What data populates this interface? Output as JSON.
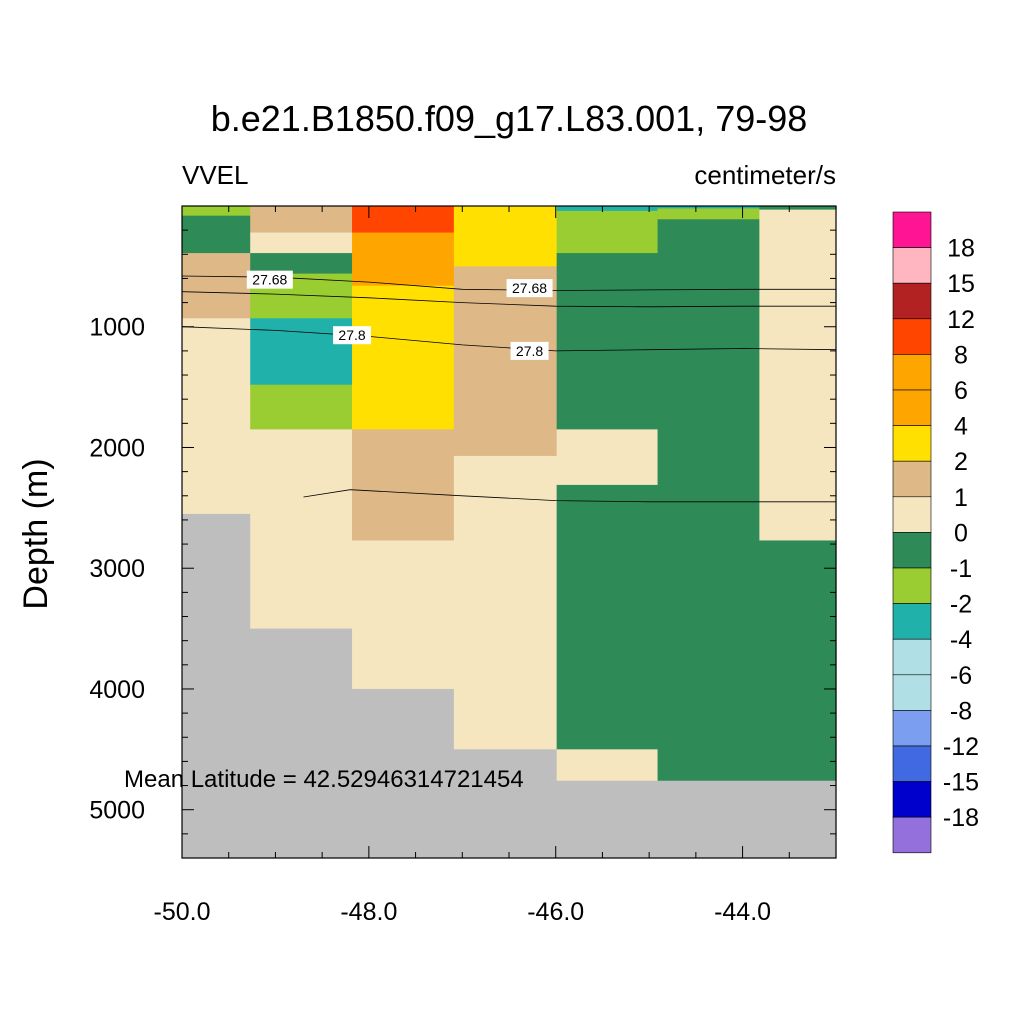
{
  "chart_data": {
    "type": "heatmap",
    "title": "b.e21.B1850.f09_g17.L83.001, 79-98",
    "variable_label": "VVEL",
    "units_label": "centimeter/s",
    "ylabel": "Depth (m)",
    "xlim": [
      -50.0,
      -43.0
    ],
    "ylim": [
      5400,
      0
    ],
    "x_ticks": [
      -50.0,
      -48.0,
      -46.0,
      -44.0
    ],
    "x_tick_labels": [
      "-50.0",
      "-48.0",
      "-46.0",
      "-44.0"
    ],
    "y_ticks": [
      1000,
      2000,
      3000,
      4000,
      5000
    ],
    "y_tick_labels": [
      "1000",
      "2000",
      "3000",
      "4000",
      "5000"
    ],
    "x_edges": [
      -50.0,
      -49.27,
      -48.18,
      -47.09,
      -45.99,
      -44.91,
      -43.82,
      -43.0
    ],
    "land_color": "#bebebe",
    "columns": [
      {
        "segments": [
          {
            "top": 0,
            "bottom": 80,
            "value": -2
          },
          {
            "top": 80,
            "bottom": 390,
            "value": -1
          },
          {
            "top": 390,
            "bottom": 930,
            "value": 1
          },
          {
            "top": 930,
            "bottom": 2550,
            "value": 0
          },
          {
            "top": 2550,
            "bottom": 5400,
            "land": true
          }
        ]
      },
      {
        "segments": [
          {
            "top": 0,
            "bottom": 220,
            "value": 1
          },
          {
            "top": 220,
            "bottom": 390,
            "value": 0
          },
          {
            "top": 390,
            "bottom": 560,
            "value": -1
          },
          {
            "top": 560,
            "bottom": 930,
            "value": -2
          },
          {
            "top": 930,
            "bottom": 1480,
            "value": -4
          },
          {
            "top": 1480,
            "bottom": 1850,
            "value": -2
          },
          {
            "top": 1850,
            "bottom": 3500,
            "value": 0
          },
          {
            "top": 3500,
            "bottom": 5400,
            "land": true
          }
        ]
      },
      {
        "segments": [
          {
            "top": 0,
            "bottom": 220,
            "value": 8
          },
          {
            "top": 220,
            "bottom": 660,
            "value": 6
          },
          {
            "top": 660,
            "bottom": 1850,
            "value": 2
          },
          {
            "top": 1850,
            "bottom": 2770,
            "value": 1
          },
          {
            "top": 2770,
            "bottom": 4000,
            "value": 0
          },
          {
            "top": 4000,
            "bottom": 5400,
            "land": true
          }
        ]
      },
      {
        "segments": [
          {
            "top": 0,
            "bottom": 500,
            "value": 2
          },
          {
            "top": 500,
            "bottom": 2070,
            "value": 1
          },
          {
            "top": 2070,
            "bottom": 4500,
            "value": 0
          },
          {
            "top": 4500,
            "bottom": 5400,
            "land": true
          }
        ]
      },
      {
        "segments": [
          {
            "top": 0,
            "bottom": 40,
            "value": -4
          },
          {
            "top": 40,
            "bottom": 390,
            "value": -2
          },
          {
            "top": 390,
            "bottom": 1850,
            "value": -1
          },
          {
            "top": 1850,
            "bottom": 2310,
            "value": 0
          },
          {
            "top": 2310,
            "bottom": 4500,
            "value": -1
          },
          {
            "top": 4500,
            "bottom": 4760,
            "value": 0
          },
          {
            "top": 4760,
            "bottom": 5400,
            "land": true
          }
        ]
      },
      {
        "segments": [
          {
            "top": 0,
            "bottom": 20,
            "value": -4
          },
          {
            "top": 20,
            "bottom": 110,
            "value": -2
          },
          {
            "top": 110,
            "bottom": 4760,
            "value": -1
          },
          {
            "top": 4760,
            "bottom": 5400,
            "land": true
          }
        ]
      },
      {
        "segments": [
          {
            "top": 0,
            "bottom": 30,
            "value": -1
          },
          {
            "top": 30,
            "bottom": 2770,
            "value": 0
          },
          {
            "top": 2770,
            "bottom": 4760,
            "value": -1
          },
          {
            "top": 4760,
            "bottom": 5400,
            "land": true
          }
        ]
      }
    ],
    "contours": [
      {
        "level": "27.68",
        "points": [
          [
            -50.0,
            580
          ],
          [
            -49.0,
            590
          ],
          [
            -48.0,
            630
          ],
          [
            -47.0,
            690
          ],
          [
            -46.0,
            700
          ],
          [
            -45.0,
            695
          ],
          [
            -44.0,
            690
          ],
          [
            -43.0,
            690
          ]
        ]
      },
      {
        "level": "",
        "points": [
          [
            -50.0,
            710
          ],
          [
            -49.0,
            730
          ],
          [
            -48.0,
            760
          ],
          [
            -47.0,
            800
          ],
          [
            -46.0,
            830
          ],
          [
            -45.0,
            835
          ],
          [
            -44.0,
            830
          ],
          [
            -43.0,
            830
          ]
        ]
      },
      {
        "level": "27.8",
        "points": [
          [
            -50.0,
            1000
          ],
          [
            -49.0,
            1030
          ],
          [
            -48.0,
            1080
          ],
          [
            -47.0,
            1150
          ],
          [
            -46.0,
            1200
          ],
          [
            -45.0,
            1190
          ],
          [
            -44.0,
            1180
          ],
          [
            -43.0,
            1190
          ]
        ]
      },
      {
        "level": "",
        "points": [
          [
            -48.7,
            2410
          ],
          [
            -48.2,
            2350
          ],
          [
            -47.0,
            2400
          ],
          [
            -46.0,
            2440
          ],
          [
            -45.0,
            2450
          ],
          [
            -44.0,
            2450
          ],
          [
            -43.0,
            2450
          ]
        ]
      }
    ],
    "contour_labels": [
      {
        "text": "27.68",
        "x": -49.06,
        "y": 610
      },
      {
        "text": "27.68",
        "x": -46.28,
        "y": 680
      },
      {
        "text": "27.8",
        "x": -48.18,
        "y": 1070
      },
      {
        "text": "27.8",
        "x": -46.28,
        "y": 1200
      }
    ],
    "annotation": "Mean Latitude = 42.52946314721454",
    "colorbar": {
      "levels": [
        "18",
        "15",
        "12",
        "8",
        "6",
        "4",
        "2",
        "1",
        "0",
        "-1",
        "-2",
        "-4",
        "-6",
        "-8",
        "-12",
        "-15",
        "-18"
      ],
      "colors": [
        "#ff1493",
        "#ffb6c1",
        "#b22222",
        "#ff4500",
        "#ffa500",
        "#ffa500",
        "#ffe000",
        "#deb887",
        "#f5e6bf",
        "#2e8b57",
        "#9acd32",
        "#20b2aa",
        "#b0e0e6",
        "#b0e0e6",
        "#7b9ef0",
        "#4169e1",
        "#0000cd",
        "#9370db"
      ]
    }
  }
}
